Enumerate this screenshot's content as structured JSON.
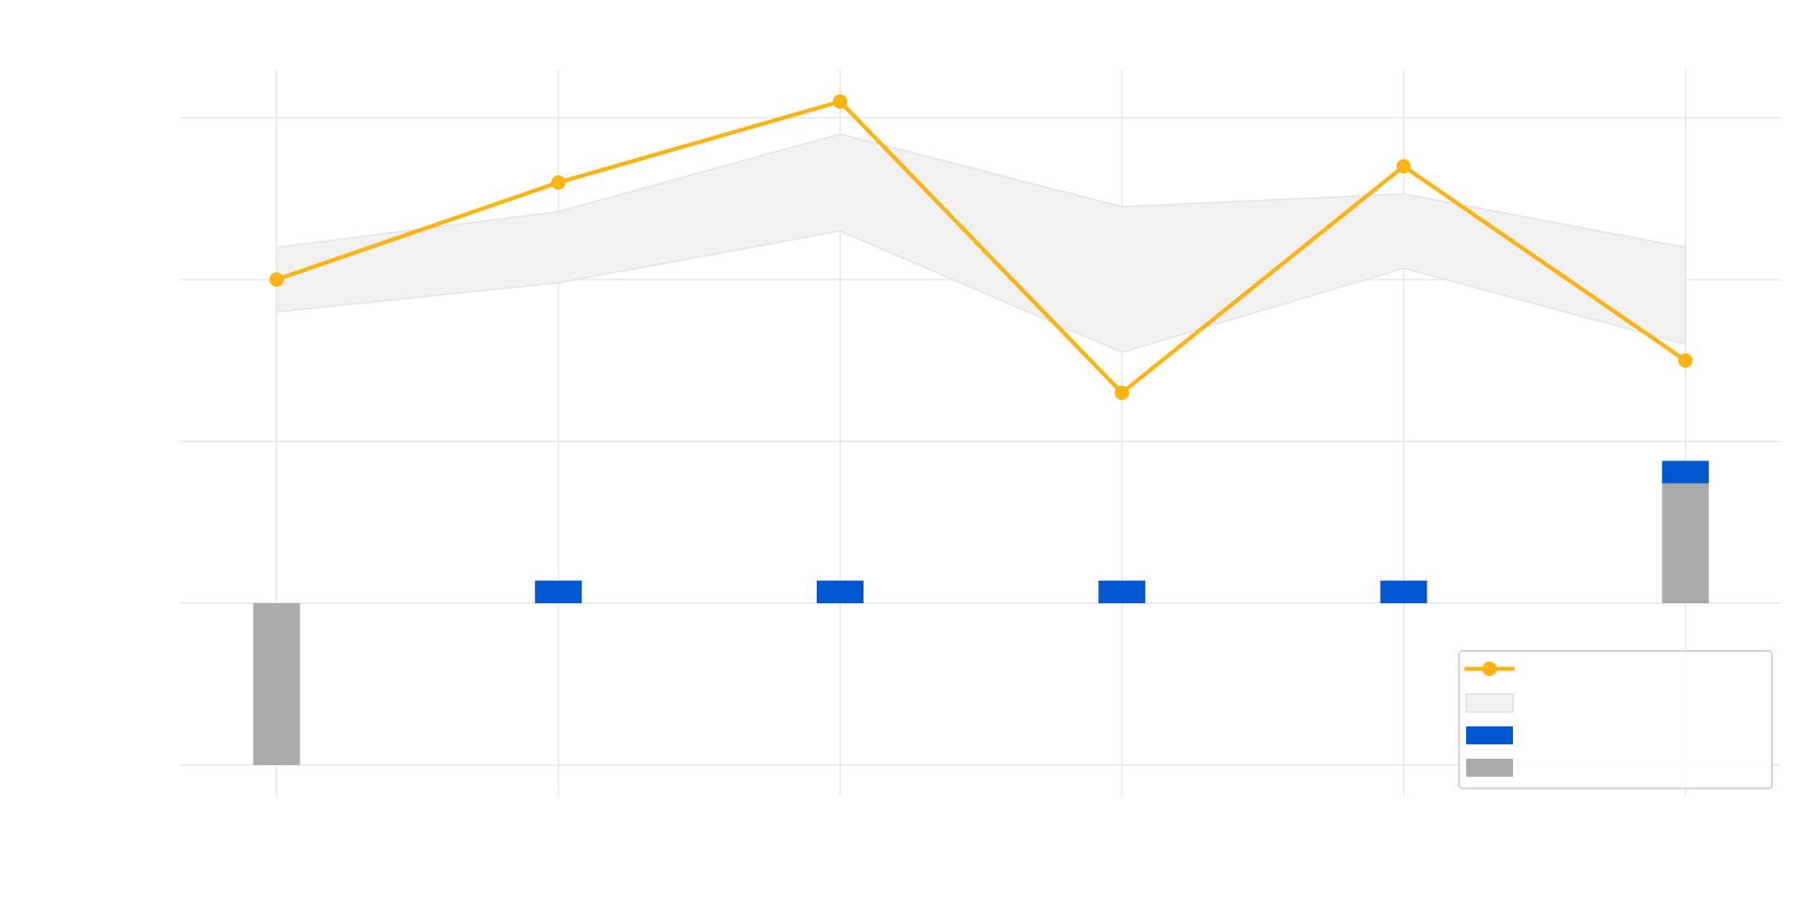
{
  "chart_data": {
    "type": "line",
    "title": "",
    "xlabel": "",
    "ylabel": "",
    "grid": true,
    "legend_position": "bottom-right",
    "x": [
      1,
      2,
      3,
      4,
      5,
      6
    ],
    "xlim": [
      0.66,
      6.34
    ],
    "ylim": [
      -2.2,
      3.6
    ],
    "y_grid_values": [
      -1,
      0,
      1,
      2,
      3
    ],
    "series": [
      {
        "kind": "line",
        "color": "#fbb413",
        "values": [
          2.0,
          2.6,
          3.1,
          1.3,
          2.7,
          1.5
        ]
      },
      {
        "kind": "band",
        "color": "#f1f1f1",
        "upper": [
          2.2,
          2.42,
          2.9,
          2.45,
          2.53,
          2.2
        ],
        "lower": [
          1.8,
          1.98,
          2.3,
          1.55,
          2.07,
          1.6
        ]
      },
      {
        "kind": "bar",
        "color": "#0058d0",
        "base": [
          0,
          0,
          0,
          0,
          0,
          0.74
        ],
        "values": [
          0,
          0.14,
          0.14,
          0.14,
          0.14,
          0.14
        ]
      },
      {
        "kind": "bar",
        "color": "#aaaaaa",
        "base": [
          0,
          0,
          0,
          0,
          0,
          0
        ],
        "values": [
          -1.0,
          0,
          0,
          0,
          0,
          0.74
        ]
      }
    ]
  }
}
